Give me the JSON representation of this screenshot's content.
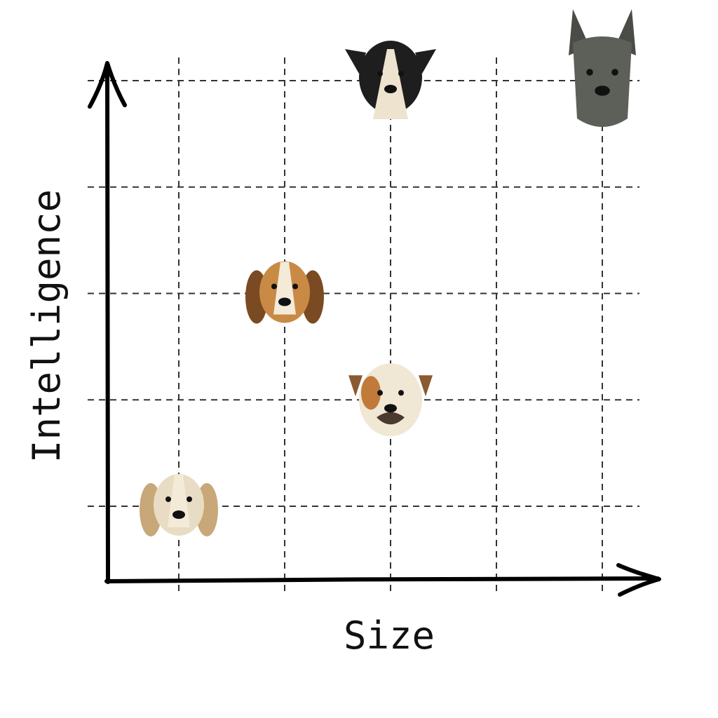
{
  "chart_data": {
    "type": "scatter",
    "title": "",
    "xlabel": "Size",
    "ylabel": "Intelligence",
    "xlim": [
      0.3,
      5.5
    ],
    "ylim": [
      0.3,
      5.2
    ],
    "grid": true,
    "grid_style": "dashed",
    "x_gridlines": [
      1,
      2,
      3,
      4,
      5
    ],
    "y_gridlines": [
      1,
      2,
      3,
      4,
      5
    ],
    "points": [
      {
        "x": 1,
        "y": 1,
        "icon": "shih-tzu-dog-icon",
        "colors": {
          "fur": "#e9dcc4",
          "ear": "#c8a878"
        }
      },
      {
        "x": 2,
        "y": 3,
        "icon": "beagle-dog-icon",
        "colors": {
          "fur": "#c98a45",
          "ear": "#7a4a22"
        }
      },
      {
        "x": 3,
        "y": 2,
        "icon": "bulldog-dog-icon",
        "colors": {
          "fur": "#f1e7d5",
          "ear": "#8a5a30"
        }
      },
      {
        "x": 3,
        "y": 5,
        "icon": "border-collie-dog-icon",
        "colors": {
          "fur": "#1e1e1e",
          "ear": "#1e1e1e"
        }
      },
      {
        "x": 5,
        "y": 5,
        "icon": "great-dane-dog-icon",
        "colors": {
          "fur": "#5d5f59",
          "ear": "#4a4c47"
        }
      }
    ]
  }
}
